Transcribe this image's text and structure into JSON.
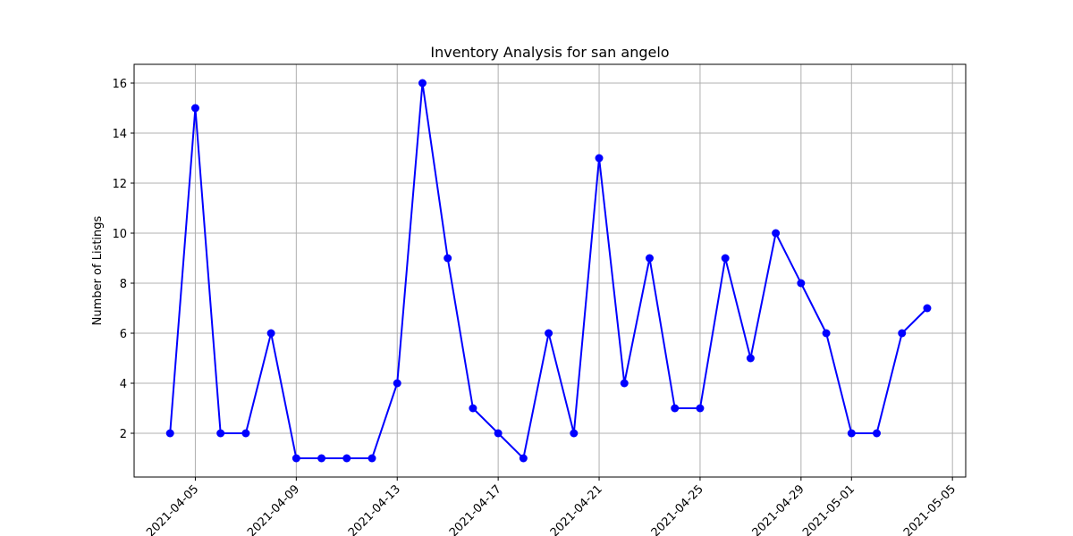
{
  "chart_data": {
    "type": "line",
    "title": "Inventory Analysis for san angelo",
    "xlabel": "",
    "ylabel": "Number of Listings",
    "grid": true,
    "x": [
      "2021-04-04",
      "2021-04-05",
      "2021-04-06",
      "2021-04-07",
      "2021-04-08",
      "2021-04-09",
      "2021-04-10",
      "2021-04-11",
      "2021-04-12",
      "2021-04-13",
      "2021-04-14",
      "2021-04-15",
      "2021-04-16",
      "2021-04-17",
      "2021-04-18",
      "2021-04-19",
      "2021-04-20",
      "2021-04-21",
      "2021-04-22",
      "2021-04-23",
      "2021-04-24",
      "2021-04-25",
      "2021-04-26",
      "2021-04-27",
      "2021-04-28",
      "2021-04-29",
      "2021-04-30",
      "2021-05-01",
      "2021-05-02",
      "2021-05-03",
      "2021-05-04"
    ],
    "series": [
      {
        "color": "#0000ff",
        "marker": "circle",
        "values": [
          2,
          15,
          2,
          2,
          6,
          1,
          1,
          1,
          1,
          4,
          16,
          9,
          3,
          2,
          1,
          6,
          2,
          13,
          4,
          9,
          3,
          3,
          9,
          5,
          10,
          8,
          6,
          2,
          2,
          6,
          7
        ]
      }
    ],
    "xticks": [
      "2021-04-05",
      "2021-04-09",
      "2021-04-13",
      "2021-04-17",
      "2021-04-21",
      "2021-04-25",
      "2021-04-29",
      "2021-05-01",
      "2021-05-05"
    ],
    "yticks": [
      2,
      4,
      6,
      8,
      10,
      12,
      14,
      16
    ],
    "xlim": [
      "2021-04-02T13:48",
      "2021-05-05T12:36"
    ],
    "ylim": [
      0.25,
      16.75
    ]
  }
}
